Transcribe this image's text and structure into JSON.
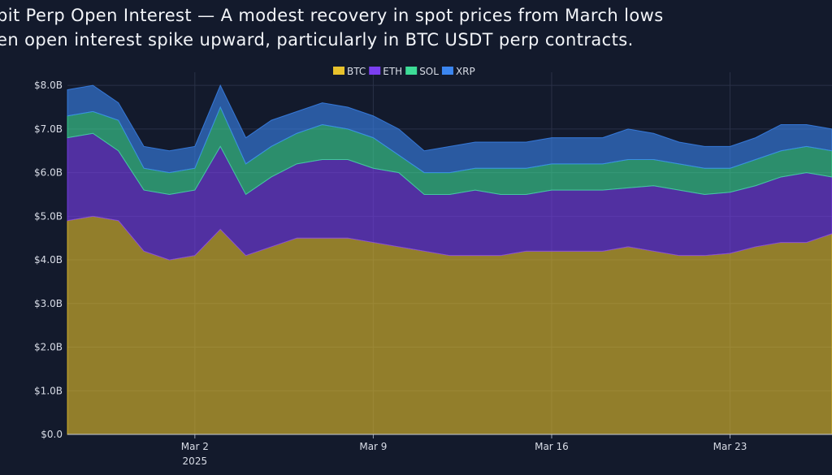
{
  "chart_data": {
    "type": "stacked-area",
    "title_lines": [
      "bit Perp Open Interest — A modest recovery in spot prices from March lows",
      "en open interest spike upward, particularly in BTC USDT perp contracts."
    ],
    "x": [
      "2025-02-25",
      "2025-02-26",
      "2025-02-27",
      "2025-02-28",
      "2025-03-01",
      "2025-03-02",
      "2025-03-03",
      "2025-03-04",
      "2025-03-05",
      "2025-03-06",
      "2025-03-07",
      "2025-03-08",
      "2025-03-09",
      "2025-03-10",
      "2025-03-11",
      "2025-03-12",
      "2025-03-13",
      "2025-03-14",
      "2025-03-15",
      "2025-03-16",
      "2025-03-17",
      "2025-03-18",
      "2025-03-19",
      "2025-03-20",
      "2025-03-21",
      "2025-03-22",
      "2025-03-23",
      "2025-03-24",
      "2025-03-25",
      "2025-03-26",
      "2025-03-27"
    ],
    "xlim": [
      "2025-02-25",
      "2025-03-27"
    ],
    "xticks": [
      {
        "value": "2025-03-02",
        "label": "Mar 2"
      },
      {
        "value": "2025-03-09",
        "label": "Mar 9"
      },
      {
        "value": "2025-03-16",
        "label": "Mar 16"
      },
      {
        "value": "2025-03-23",
        "label": "Mar 23"
      }
    ],
    "x_year_label": "2025",
    "ylim": [
      0,
      8.3
    ],
    "yticks": [
      {
        "value": 0,
        "label": "$0.0"
      },
      {
        "value": 1,
        "label": "$1.0B"
      },
      {
        "value": 2,
        "label": "$2.0B"
      },
      {
        "value": 3,
        "label": "$3.0B"
      },
      {
        "value": 4,
        "label": "$4.0B"
      },
      {
        "value": 5,
        "label": "$5.0B"
      },
      {
        "value": 6,
        "label": "$6.0B"
      },
      {
        "value": 7,
        "label": "$7.0B"
      },
      {
        "value": 8,
        "label": "$8.0B"
      }
    ],
    "grid": true,
    "series": [
      {
        "name": "BTC",
        "color": "#e8c22c",
        "values": [
          4.9,
          5.0,
          4.9,
          4.2,
          4.0,
          4.1,
          4.7,
          4.1,
          4.3,
          4.5,
          4.5,
          4.5,
          4.4,
          4.3,
          4.2,
          4.1,
          4.1,
          4.1,
          4.2,
          4.2,
          4.2,
          4.2,
          4.3,
          4.2,
          4.1,
          4.1,
          4.15,
          4.3,
          4.4,
          4.4,
          4.6
        ]
      },
      {
        "name": "ETH",
        "color": "#7b3ff0",
        "values": [
          1.9,
          1.9,
          1.6,
          1.4,
          1.5,
          1.5,
          1.9,
          1.4,
          1.6,
          1.7,
          1.8,
          1.8,
          1.7,
          1.7,
          1.3,
          1.4,
          1.5,
          1.4,
          1.3,
          1.4,
          1.4,
          1.4,
          1.35,
          1.5,
          1.5,
          1.4,
          1.4,
          1.4,
          1.5,
          1.6,
          1.3
        ]
      },
      {
        "name": "SOL",
        "color": "#3ddc97",
        "values": [
          0.5,
          0.5,
          0.7,
          0.5,
          0.5,
          0.5,
          0.9,
          0.7,
          0.7,
          0.7,
          0.8,
          0.7,
          0.7,
          0.4,
          0.5,
          0.5,
          0.5,
          0.6,
          0.6,
          0.6,
          0.6,
          0.6,
          0.65,
          0.6,
          0.6,
          0.6,
          0.55,
          0.6,
          0.6,
          0.6,
          0.6
        ]
      },
      {
        "name": "XRP",
        "color": "#3b86f0",
        "values": [
          0.6,
          0.6,
          0.4,
          0.5,
          0.5,
          0.5,
          0.5,
          0.6,
          0.6,
          0.5,
          0.5,
          0.5,
          0.5,
          0.6,
          0.5,
          0.6,
          0.6,
          0.6,
          0.6,
          0.6,
          0.6,
          0.6,
          0.7,
          0.6,
          0.5,
          0.5,
          0.5,
          0.5,
          0.6,
          0.5,
          0.5
        ]
      }
    ]
  }
}
